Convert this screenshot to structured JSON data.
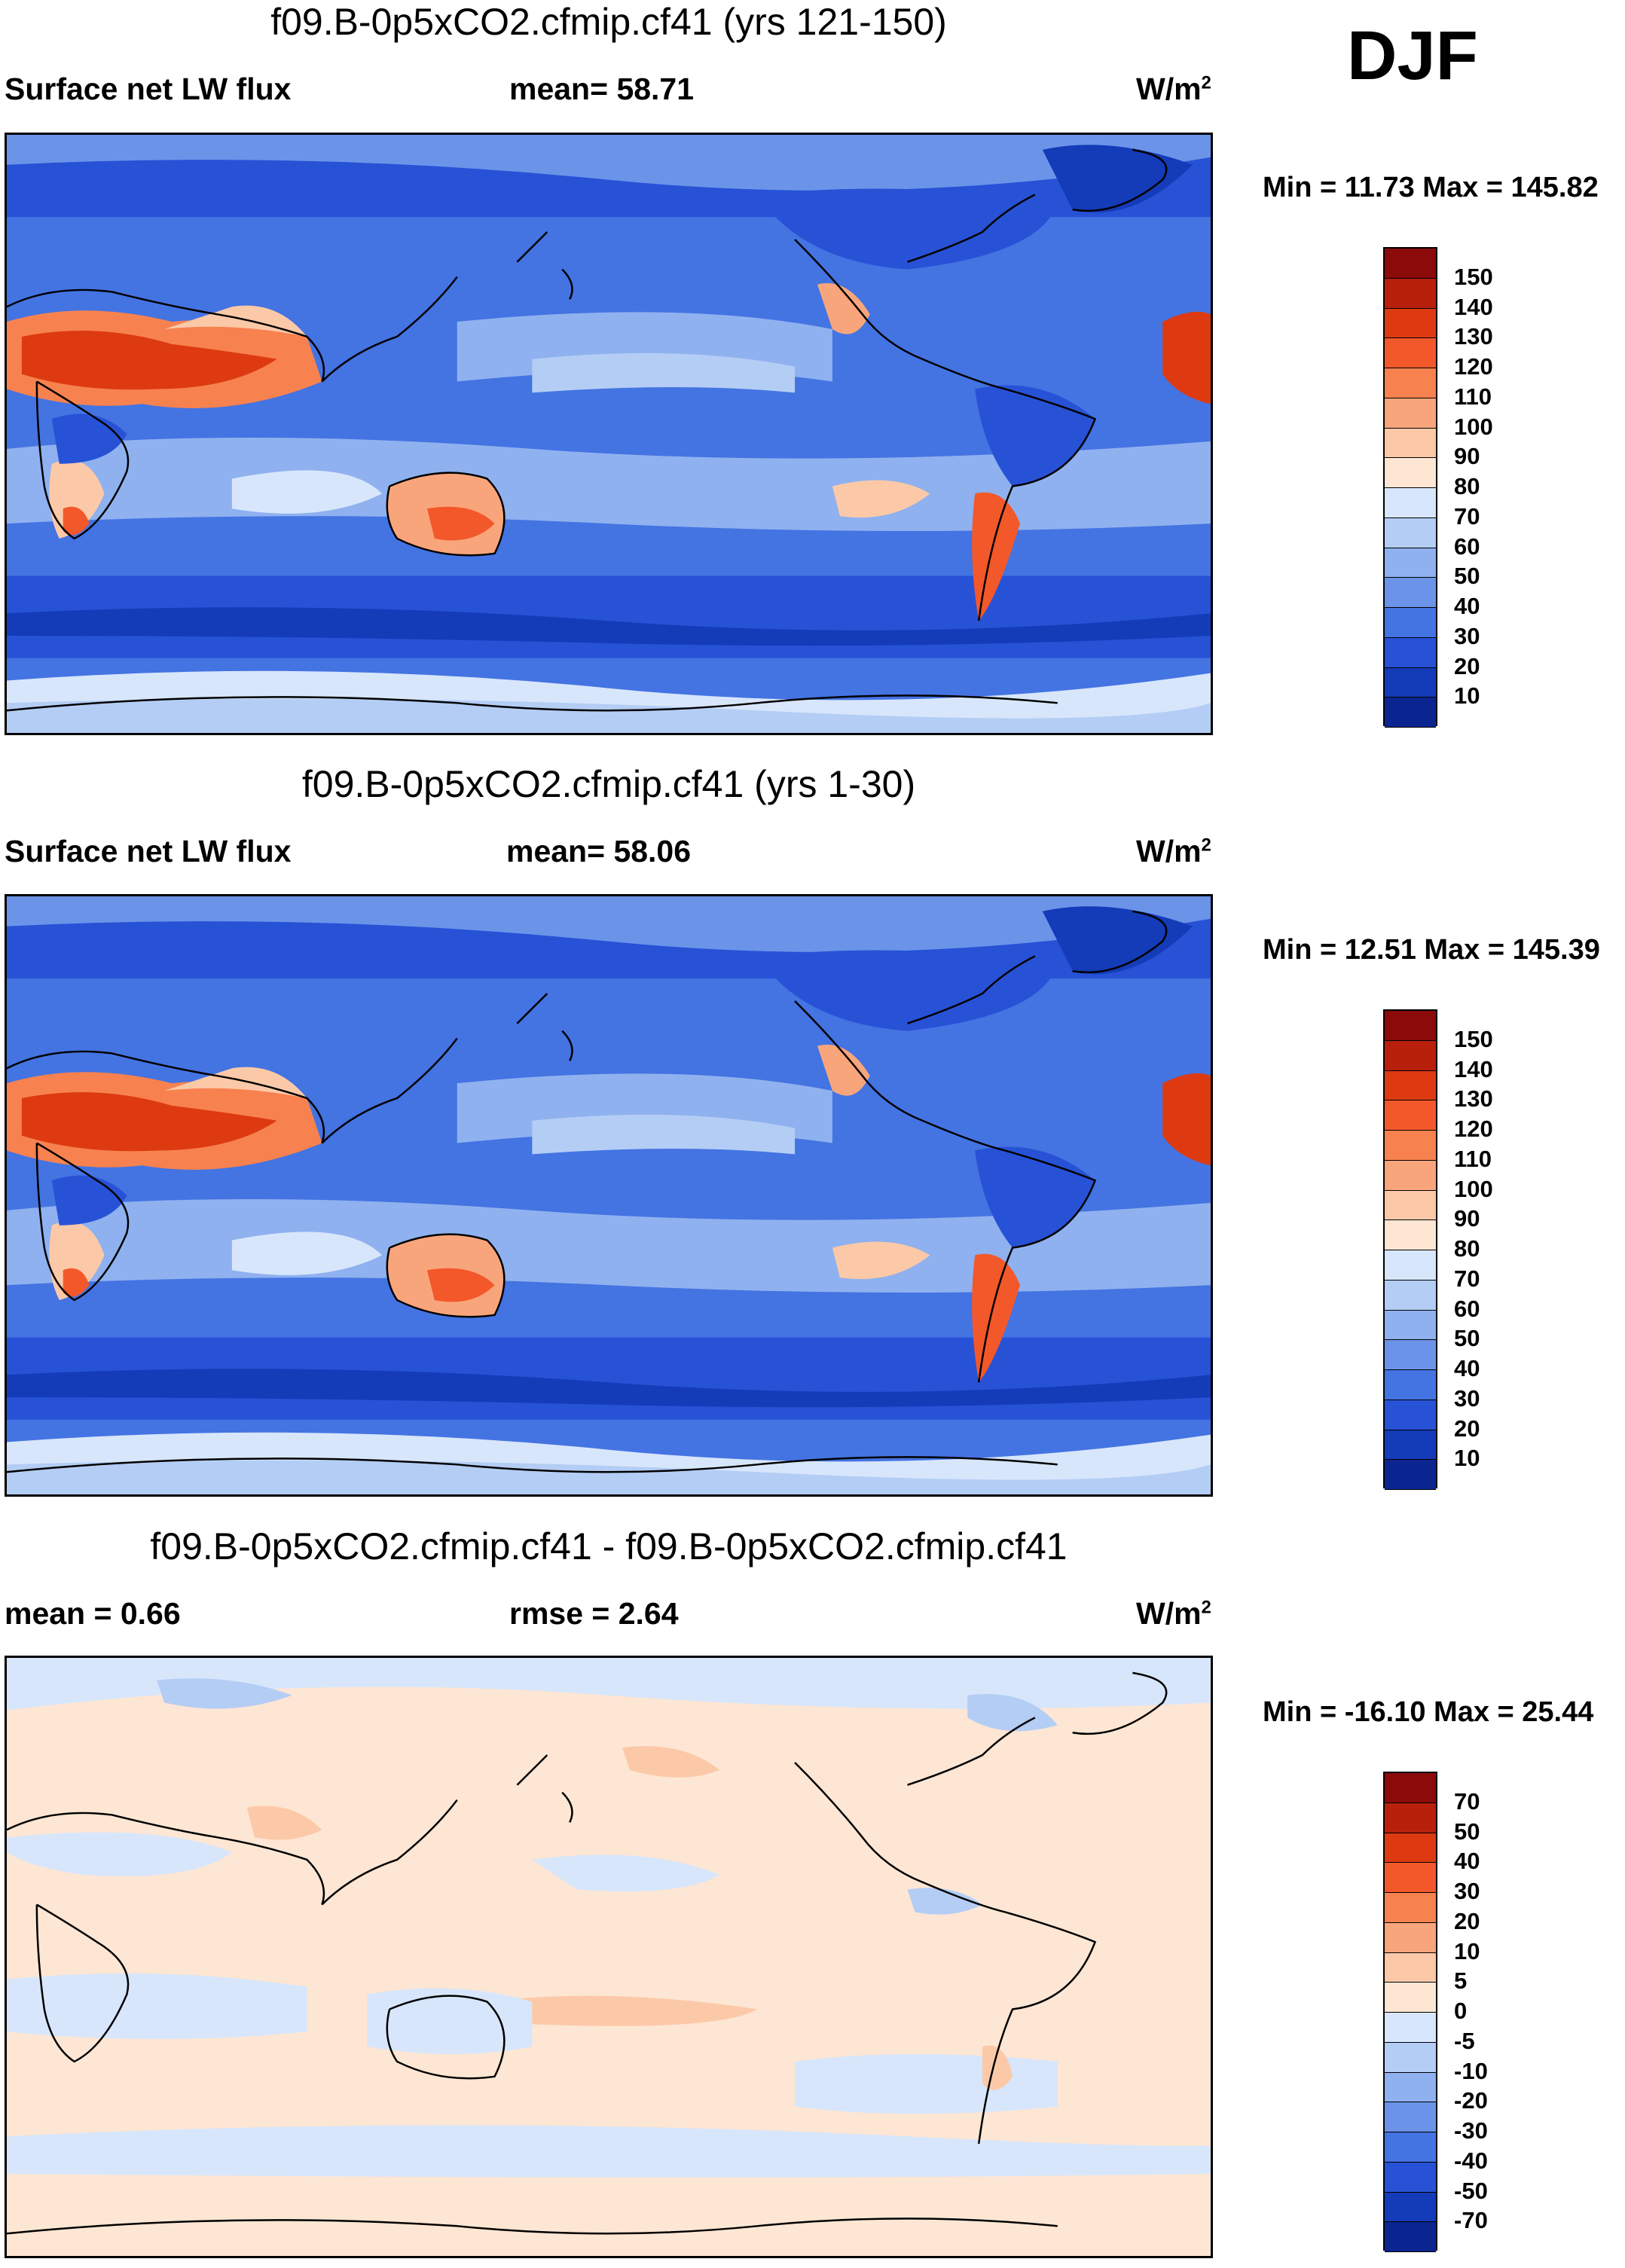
{
  "season": "DJF",
  "panels": [
    {
      "title": "f09.B-0p5xCO2.cfmip.cf41 (yrs 121-150)",
      "left_label": "Surface net LW flux",
      "center_label": "mean=  58.71",
      "units": "W/m",
      "units_sup": "2",
      "minmax": "Min =  11.73 Max = 145.82",
      "kind": "abs"
    },
    {
      "title": "f09.B-0p5xCO2.cfmip.cf41 (yrs 1-30)",
      "left_label": "Surface net LW flux",
      "center_label": "mean=  58.06",
      "units": "W/m",
      "units_sup": "2",
      "minmax": "Min =  12.51 Max = 145.39",
      "kind": "abs"
    },
    {
      "title": "f09.B-0p5xCO2.cfmip.cf41 - f09.B-0p5xCO2.cfmip.cf41",
      "left_label": "mean =   0.66",
      "center_label": "rmse =   2.64",
      "units": "W/m",
      "units_sup": "2",
      "minmax": "Min = -16.10 Max =  25.44",
      "kind": "diff"
    }
  ],
  "colorbars": {
    "abs": {
      "labels": [
        "150",
        "140",
        "130",
        "120",
        "110",
        "100",
        "90",
        "80",
        "70",
        "60",
        "50",
        "40",
        "30",
        "20",
        "10"
      ],
      "colors": [
        "#8b0a0a",
        "#b8200c",
        "#dd3a12",
        "#f3582a",
        "#f7824f",
        "#f9a57c",
        "#fcc9a8",
        "#fde6d4",
        "#d7e6fb",
        "#b4cdf5",
        "#8fb1ef",
        "#6b94e9",
        "#4473e2",
        "#2752d6",
        "#143bb8",
        "#0b2590"
      ]
    },
    "diff": {
      "labels": [
        "70",
        "50",
        "40",
        "30",
        "20",
        "10",
        "5",
        "0",
        "-5",
        "-10",
        "-20",
        "-30",
        "-40",
        "-50",
        "-70"
      ],
      "colors": [
        "#8b0a0a",
        "#b8200c",
        "#dd3a12",
        "#f3582a",
        "#f7824f",
        "#f9a57c",
        "#fcc9a8",
        "#fde6d4",
        "#d7e6fb",
        "#b4cdf5",
        "#8fb1ef",
        "#6b94e9",
        "#4473e2",
        "#2752d6",
        "#143bb8",
        "#0b2590"
      ]
    }
  }
}
